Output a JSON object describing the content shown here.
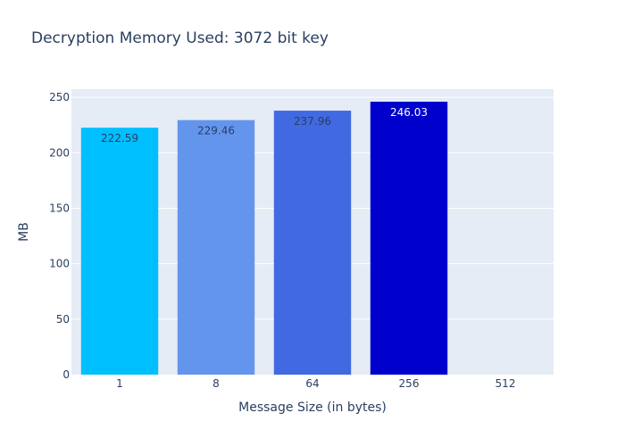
{
  "chart_data": {
    "type": "bar",
    "title": "Decryption Memory Used: 3072 bit key",
    "xlabel": "Message Size (in bytes)",
    "ylabel": "MB",
    "categories": [
      "1",
      "8",
      "64",
      "256",
      "512"
    ],
    "values": [
      222.59,
      229.46,
      237.96,
      246.03,
      0
    ],
    "data_labels": [
      "222.59",
      "229.46",
      "237.96",
      "246.03",
      ""
    ],
    "bar_colors": [
      "#00bfff",
      "#6495ed",
      "#4169e1",
      "#0000cd",
      "#000080"
    ],
    "label_colors": [
      "#2a3f5f",
      "#2a3f5f",
      "#2a3f5f",
      "#ffffff",
      "#ffffff"
    ],
    "ylim": [
      0,
      257.3
    ],
    "yticks": [
      0,
      50,
      100,
      150,
      200,
      250
    ],
    "grid": true,
    "plot_bgcolor": "#e5ecf6",
    "legend": "none"
  }
}
